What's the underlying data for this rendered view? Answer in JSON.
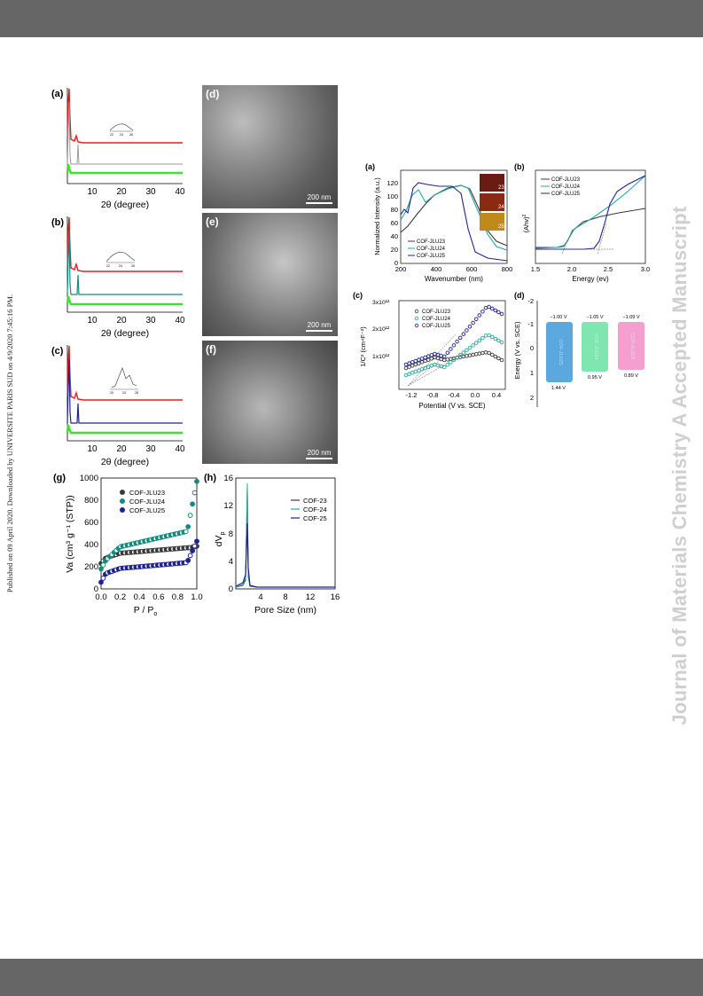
{
  "watermark": "Journal of Materials Chemistry A Accepted Manuscript",
  "published_note": "Published on 09 April 2020. Downloaded by UNIVERSITE PARIS SUD on 4/9/2020 7:45:16 PM.",
  "colors": {
    "bars": "#666666",
    "red": "#e02020",
    "gray": "#9a9a9a",
    "green": "#44dd33",
    "teal": "#138b7e",
    "navy": "#1f238f",
    "dark": "#3a3a3a",
    "seafoam": "#2aa89a",
    "blue_box": "#5ba8e0",
    "green_box": "#7fe6b0",
    "pink_box": "#f49fcf",
    "watermark": "#cfcfcf"
  },
  "xrd_panels": [
    {
      "label": "(a)",
      "xlabel": "2θ (degree)",
      "ticks": [
        "10",
        "20",
        "30",
        "40"
      ],
      "inset_ticks": [
        "22",
        "24",
        "26"
      ],
      "sim_color": "gray",
      "main_color": "red"
    },
    {
      "label": "(b)",
      "xlabel": "2θ (degree)",
      "ticks": [
        "10",
        "20",
        "30",
        "40"
      ],
      "inset_ticks": [
        "22",
        "24",
        "26"
      ],
      "sim_color": "teal",
      "main_color": "red"
    },
    {
      "label": "(c)",
      "xlabel": "2θ (degree)",
      "ticks": [
        "10",
        "20",
        "30",
        "40"
      ],
      "inset_ticks": [
        "20",
        "24",
        "28"
      ],
      "sim_color": "navy",
      "main_color": "red"
    }
  ],
  "sem_panels": [
    {
      "label": "(d)",
      "scale": "200 nm"
    },
    {
      "label": "(e)",
      "scale": "200 nm"
    },
    {
      "label": "(f)",
      "scale": "200 nm"
    }
  ],
  "panel_g": {
    "label": "(g)",
    "xlabel": "P / P",
    "xlabel_sub": "o",
    "ylabel": "Va (cm³ g⁻¹ (STP))",
    "xticks": [
      "0.0",
      "0.2",
      "0.4",
      "0.6",
      "0.8",
      "1.0"
    ],
    "yticks": [
      "0",
      "200",
      "400",
      "600",
      "800",
      "1000"
    ],
    "legend": [
      "COF-JLU23",
      "COF-JLU24",
      "COF-JLU25"
    ]
  },
  "panel_h": {
    "label": "(h)",
    "xlabel": "Pore Size (nm)",
    "ylabel": "dV",
    "ylabel_sub": "p",
    "xticks": [
      "4",
      "8",
      "12",
      "16"
    ],
    "yticks": [
      "0",
      "4",
      "8",
      "12",
      "16"
    ],
    "legend": [
      "COF-23",
      "COF-24",
      "COF-25"
    ]
  },
  "panel_a2": {
    "label": "(a)",
    "xlabel": "Wavenumber (nm)",
    "ylabel": "Normalized Intensity (a.u.)",
    "xticks": [
      "200",
      "400",
      "600",
      "800"
    ],
    "yticks": [
      "0",
      "20",
      "40",
      "60",
      "80",
      "100",
      "120"
    ],
    "legend": [
      "COF-JLU23",
      "COF-JLU24",
      "COF-JLU25"
    ],
    "photo_labels": [
      "23",
      "24",
      "25"
    ]
  },
  "panel_b2": {
    "label": "(b)",
    "xlabel": "Energy (ev)",
    "ylabel": "(Ahv)",
    "ylabel_sup": "2",
    "xticks": [
      "1.5",
      "2.0",
      "2.5",
      "3.0"
    ],
    "legend": [
      "COF-JLU23",
      "COF-JLU24",
      "COF-JLU25"
    ]
  },
  "panel_c2": {
    "label": "(c)",
    "xlabel": "Potential (V vs. SCE)",
    "ylabel": "1/C² (cm⁴F⁻²)",
    "xticks": [
      "-1.2",
      "-0.8",
      "-0.4",
      "0.0",
      "0.4"
    ],
    "yticks": [
      "1x10¹²",
      "2x10¹²",
      "3x10¹²"
    ],
    "legend": [
      "COF-JLU23",
      "COF-JLU24",
      "COF-JLU25"
    ]
  },
  "panel_d2": {
    "label": "(d)",
    "ylabel": "Energy (V vs. SCE)",
    "yticks": [
      "-2",
      "-1",
      "0",
      "1",
      "2"
    ],
    "boxes": [
      {
        "top": "−1.00 V",
        "bottom": "1.44 V",
        "name": "COF-JLU25",
        "color": "blue_box"
      },
      {
        "top": "−1.05 V",
        "bottom": "0.95 V",
        "name": "COF-JLU24",
        "color": "green_box"
      },
      {
        "top": "−1.09 V",
        "bottom": "0.89 V",
        "name": "COF-JLU23",
        "color": "pink_box"
      }
    ]
  }
}
